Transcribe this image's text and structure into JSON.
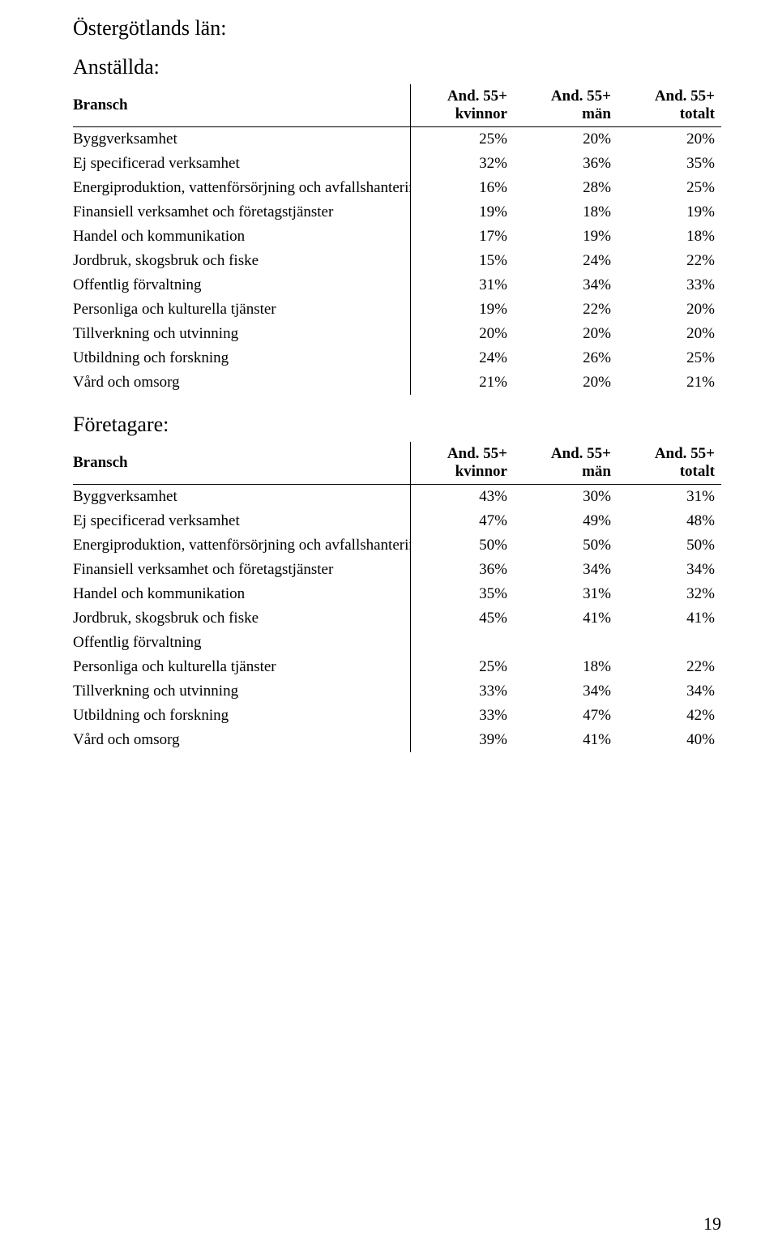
{
  "page": {
    "region_title": "Östergötlands län:",
    "page_number": "19"
  },
  "columns": {
    "label": "Bransch",
    "c1": "And. 55+ kvinnor",
    "c2": "And. 55+ män",
    "c3": "And. 55+ totalt"
  },
  "sections": [
    {
      "title": "Anställda:",
      "rows": [
        {
          "label": "Byggverksamhet",
          "c1": "25%",
          "c2": "20%",
          "c3": "20%"
        },
        {
          "label": "Ej specificerad verksamhet",
          "c1": "32%",
          "c2": "36%",
          "c3": "35%"
        },
        {
          "label": "Energiproduktion, vattenförsörjning och avfallshantering",
          "c1": "16%",
          "c2": "28%",
          "c3": "25%"
        },
        {
          "label": "Finansiell verksamhet och företagstjänster",
          "c1": "19%",
          "c2": "18%",
          "c3": "19%"
        },
        {
          "label": "Handel och kommunikation",
          "c1": "17%",
          "c2": "19%",
          "c3": "18%"
        },
        {
          "label": "Jordbruk, skogsbruk och fiske",
          "c1": "15%",
          "c2": "24%",
          "c3": "22%"
        },
        {
          "label": "Offentlig förvaltning",
          "c1": "31%",
          "c2": "34%",
          "c3": "33%"
        },
        {
          "label": "Personliga och kulturella tjänster",
          "c1": "19%",
          "c2": "22%",
          "c3": "20%"
        },
        {
          "label": "Tillverkning och utvinning",
          "c1": "20%",
          "c2": "20%",
          "c3": "20%"
        },
        {
          "label": "Utbildning och forskning",
          "c1": "24%",
          "c2": "26%",
          "c3": "25%"
        },
        {
          "label": "Vård och omsorg",
          "c1": "21%",
          "c2": "20%",
          "c3": "21%"
        }
      ]
    },
    {
      "title": "Företagare:",
      "rows": [
        {
          "label": "Byggverksamhet",
          "c1": "43%",
          "c2": "30%",
          "c3": "31%"
        },
        {
          "label": "Ej specificerad verksamhet",
          "c1": "47%",
          "c2": "49%",
          "c3": "48%"
        },
        {
          "label": "Energiproduktion, vattenförsörjning och avfallshantering",
          "c1": "50%",
          "c2": "50%",
          "c3": "50%"
        },
        {
          "label": "Finansiell verksamhet och företagstjänster",
          "c1": "36%",
          "c2": "34%",
          "c3": "34%"
        },
        {
          "label": "Handel och kommunikation",
          "c1": "35%",
          "c2": "31%",
          "c3": "32%"
        },
        {
          "label": "Jordbruk, skogsbruk och fiske",
          "c1": "45%",
          "c2": "41%",
          "c3": "41%"
        },
        {
          "label": "Offentlig förvaltning",
          "c1": "",
          "c2": "",
          "c3": ""
        },
        {
          "label": "Personliga och kulturella tjänster",
          "c1": "25%",
          "c2": "18%",
          "c3": "22%"
        },
        {
          "label": "Tillverkning och utvinning",
          "c1": "33%",
          "c2": "34%",
          "c3": "34%"
        },
        {
          "label": "Utbildning och forskning",
          "c1": "33%",
          "c2": "47%",
          "c3": "42%"
        },
        {
          "label": "Vård och omsorg",
          "c1": "39%",
          "c2": "41%",
          "c3": "40%"
        }
      ]
    }
  ]
}
